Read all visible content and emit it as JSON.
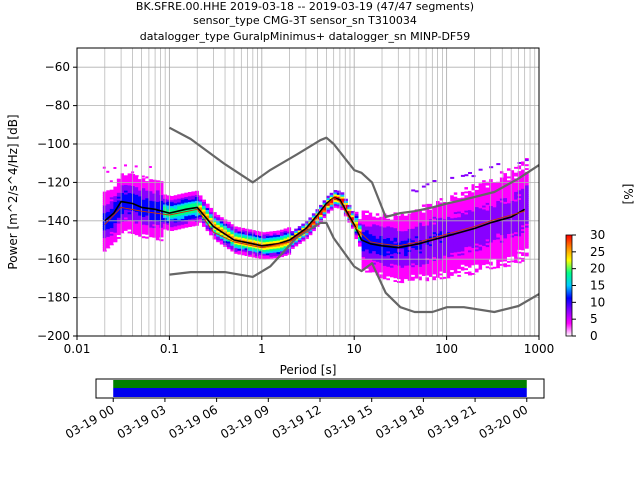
{
  "title": {
    "line1": "BK.SFRE.00.HHE   2019-03-18 -- 2019-03-19  (47/47 segments)",
    "line2": "sensor_type CMG-3T sensor_sn T310034",
    "line3": "datalogger_type GuralpMinimus+ datalogger_sn MINP-DF59"
  },
  "colors": {
    "model": "#666666",
    "mean": "#000000",
    "mode": "#cc3300",
    "grid": "#b0b0b0",
    "coverage_top": "#008000",
    "coverage_bottom": "#0000ee"
  },
  "chart_data": [
    {
      "type": "heatmap",
      "subtype": "probabilistic-power-spectral-density",
      "xlabel": "Period [s]",
      "ylabel": "Power [m^2/s^4/Hz] [dB]",
      "xscale": "log",
      "xlim": [
        0.01,
        1000
      ],
      "ylim": [
        -200,
        -50
      ],
      "xticks": [
        {
          "v": 0.01,
          "label": "0.01"
        },
        {
          "v": 0.1,
          "label": "0.1"
        },
        {
          "v": 1,
          "label": "1"
        },
        {
          "v": 10,
          "label": "10"
        },
        {
          "v": 100,
          "label": "100"
        },
        {
          "v": 1000,
          "label": "1000"
        }
      ],
      "yticks": [
        {
          "v": -60,
          "label": "−60"
        },
        {
          "v": -80,
          "label": "−80"
        },
        {
          "v": -100,
          "label": "−100"
        },
        {
          "v": -120,
          "label": "−120"
        },
        {
          "v": -140,
          "label": "−140"
        },
        {
          "v": -160,
          "label": "−160"
        },
        {
          "v": -180,
          "label": "−180"
        },
        {
          "v": -200,
          "label": "−200"
        }
      ],
      "grid": true,
      "colorbar": {
        "label": "[%]",
        "range": [
          0,
          30
        ],
        "ticks": [
          {
            "v": 0,
            "label": "0"
          },
          {
            "v": 5,
            "label": "5"
          },
          {
            "v": 10,
            "label": "10"
          },
          {
            "v": 15,
            "label": "15"
          },
          {
            "v": 20,
            "label": "20"
          },
          {
            "v": 25,
            "label": "25"
          },
          {
            "v": 30,
            "label": "30"
          }
        ],
        "colors": [
          "#ffffff",
          "#ff00ff",
          "#8800ff",
          "#0000ff",
          "#00ccff",
          "#00ff88",
          "#ffff00",
          "#ff8800",
          "#ff0000"
        ]
      },
      "series": [
        {
          "role": "noise-model-high",
          "x": [
            0.1,
            0.17,
            0.4,
            0.8,
            1.24,
            2.4,
            4.3,
            5,
            6,
            10,
            12,
            15.6,
            21.9,
            31.6,
            45,
            70,
            101,
            154,
            328,
            600,
            1000
          ],
          "y": [
            -91.5,
            -97.4,
            -110.5,
            -120,
            -113.5,
            -105.4,
            -98,
            -96.7,
            -100,
            -113.6,
            -115,
            -120,
            -138,
            -136,
            -135,
            -133,
            -131,
            -129,
            -125,
            -118,
            -111
          ]
        },
        {
          "role": "noise-model-low",
          "x": [
            0.1,
            0.17,
            0.4,
            0.8,
            1.24,
            2.4,
            4.3,
            5,
            6,
            10,
            12,
            15.6,
            21.9,
            31.6,
            45,
            70,
            101,
            154,
            328,
            600,
            1000
          ],
          "y": [
            -168,
            -166.7,
            -166.7,
            -169.2,
            -163.7,
            -148.6,
            -141.1,
            -141.1,
            -149,
            -163.8,
            -166.2,
            -162.1,
            -177.5,
            -185,
            -187.5,
            -187.5,
            -185,
            -185,
            -187.5,
            -184.4,
            -178.2
          ]
        },
        {
          "role": "mean",
          "x": [
            0.02,
            0.025,
            0.03,
            0.04,
            0.05,
            0.07,
            0.1,
            0.15,
            0.2,
            0.3,
            0.5,
            0.8,
            1,
            1.5,
            2,
            3,
            4,
            5,
            6,
            7,
            8,
            10,
            12,
            15,
            20,
            30,
            50,
            70,
            100,
            200,
            300,
            500,
            700
          ],
          "y": [
            -140,
            -136,
            -130,
            -131,
            -133,
            -134,
            -136,
            -134,
            -133,
            -143,
            -150,
            -152,
            -153,
            -152,
            -150,
            -144,
            -137,
            -131,
            -128,
            -129,
            -134,
            -142,
            -150,
            -152,
            -153,
            -154,
            -152,
            -150,
            -148,
            -144,
            -141,
            -138,
            -134
          ]
        },
        {
          "role": "mode",
          "x": [
            0.02,
            0.03,
            0.05,
            0.1,
            0.2,
            0.3,
            0.5,
            1,
            2,
            3,
            4,
            5,
            6,
            7,
            8,
            10,
            15,
            20,
            30,
            50,
            100,
            200,
            300,
            500,
            700
          ],
          "y": [
            -142,
            -133,
            -135,
            -137,
            -134,
            -146,
            -151,
            -154,
            -151,
            -145,
            -138,
            -132,
            -128,
            -130,
            -135,
            -143,
            -151,
            -152,
            -153,
            -151,
            -147,
            -143,
            -140,
            -137,
            -135
          ]
        }
      ]
    },
    {
      "type": "bar",
      "subtype": "data-coverage-timeline",
      "xticks": [
        "03-19 00",
        "03-19 03",
        "03-19 06",
        "03-19 09",
        "03-19 12",
        "03-19 15",
        "03-19 18",
        "03-19 21",
        "03-20 00"
      ],
      "xlim_hours": [
        -1,
        25
      ],
      "coverage": [
        {
          "start_hour": 0,
          "end_hour": 24
        }
      ]
    }
  ]
}
